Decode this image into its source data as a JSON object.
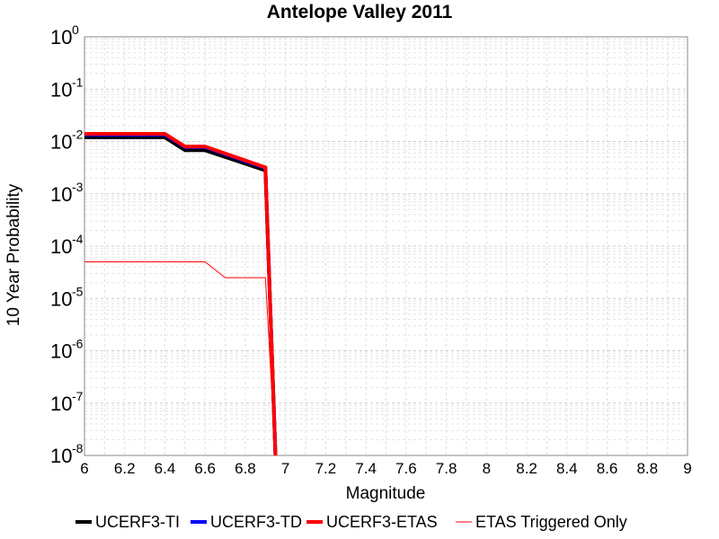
{
  "chart_data": {
    "type": "line",
    "title": "Antelope Valley 2011",
    "xlabel": "Magnitude",
    "ylabel": "10 Year Probability",
    "xlim": [
      6,
      9
    ],
    "ylim": [
      1e-08,
      1
    ],
    "yscale": "log",
    "grid": true,
    "legend_position": "bottom",
    "x_ticks": [
      "6",
      "6.2",
      "6.4",
      "6.6",
      "6.8",
      "7",
      "7.2",
      "7.4",
      "7.6",
      "7.8",
      "8",
      "8.2",
      "8.4",
      "8.6",
      "8.8",
      "9"
    ],
    "y_ticks": [
      {
        "base": "10",
        "exp": "0"
      },
      {
        "base": "10",
        "exp": "-1"
      },
      {
        "base": "10",
        "exp": "-2"
      },
      {
        "base": "10",
        "exp": "-3"
      },
      {
        "base": "10",
        "exp": "-4"
      },
      {
        "base": "10",
        "exp": "-5"
      },
      {
        "base": "10",
        "exp": "-6"
      },
      {
        "base": "10",
        "exp": "-7"
      },
      {
        "base": "10",
        "exp": "-8"
      }
    ],
    "series": [
      {
        "name": "UCERF3-TI",
        "color": "#000000",
        "width": 4,
        "x": [
          6.0,
          6.4,
          6.5,
          6.6,
          6.9,
          6.95
        ],
        "y": [
          0.012,
          0.012,
          0.0068,
          0.0068,
          0.0028,
          1e-08
        ]
      },
      {
        "name": "UCERF3-TD",
        "color": "#0000ff",
        "width": 4,
        "x": [
          6.0,
          6.4,
          6.5,
          6.6,
          6.9,
          6.95
        ],
        "y": [
          0.0135,
          0.0135,
          0.0078,
          0.0078,
          0.0031,
          1e-08
        ]
      },
      {
        "name": "UCERF3-ETAS",
        "color": "#ff0000",
        "width": 4,
        "x": [
          6.0,
          6.4,
          6.5,
          6.6,
          6.9,
          6.95
        ],
        "y": [
          0.014,
          0.014,
          0.008,
          0.008,
          0.0032,
          1e-08
        ]
      },
      {
        "name": "ETAS Triggered Only",
        "color": "#ff0000",
        "width": 1,
        "x": [
          6.0,
          6.6,
          6.7,
          6.9,
          6.95
        ],
        "y": [
          5e-05,
          5e-05,
          2.5e-05,
          2.5e-05,
          1e-08
        ]
      }
    ]
  }
}
